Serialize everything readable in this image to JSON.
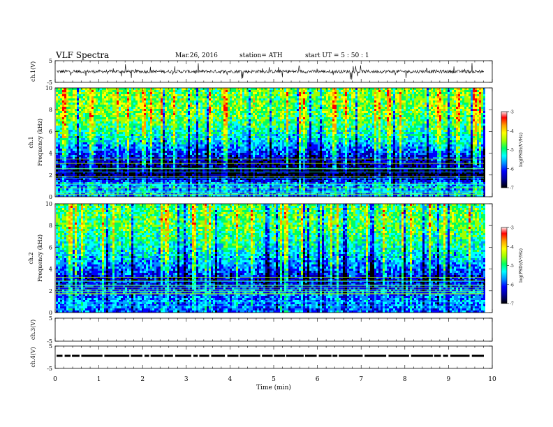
{
  "header": {
    "title": "VLF  Spectra",
    "date": "Mar.26,  2016",
    "station": "station= ATH",
    "start": "start  UT =   5  : 50 : 1"
  },
  "chart_data": [
    {
      "type": "line",
      "panel": "ch1-waveform",
      "ylabel": "ch.1(V)",
      "ylim": [
        -5,
        5
      ],
      "yticks": [
        "5",
        "-5"
      ],
      "xlim": [
        0,
        10
      ],
      "description_values": {
        "baseline_v": 0.0,
        "typical_amplitude_v": 1.5,
        "max_spike_v": 3.5
      }
    },
    {
      "type": "heatmap",
      "panel": "ch1-spectrogram",
      "ylabel": "Frequency  (kHz)",
      "channel_label": "ch.1",
      "ylim": [
        0,
        10
      ],
      "yticks": [
        "0",
        "2",
        "4",
        "6",
        "8",
        "10"
      ],
      "xlim": [
        0,
        9.8
      ],
      "colorbar": {
        "label": "log(PSD)(V²/Hz)",
        "range": [
          -7,
          -3
        ],
        "ticks": [
          "-3",
          "-4",
          "-5",
          "-6",
          "-7"
        ],
        "colors": [
          "#000000",
          "#0000a0",
          "#0000ff",
          "#0090ff",
          "#00ffff",
          "#00ff60",
          "#a0ff00",
          "#ffff00",
          "#ffa000",
          "#ff0000",
          "#ffffff"
        ]
      },
      "rows": [
        {
          "f": 10,
          "level": -4.6
        },
        {
          "f": 9,
          "level": -4.5
        },
        {
          "f": 8,
          "level": -4.5
        },
        {
          "f": 7,
          "level": -4.7
        },
        {
          "f": 6,
          "level": -5.0
        },
        {
          "f": 5,
          "level": -5.3
        },
        {
          "f": 4,
          "level": -5.9
        },
        {
          "f": 3,
          "level": -6.4
        },
        {
          "f": 2,
          "level": -6.7
        },
        {
          "f": 1,
          "level": -5.4
        },
        {
          "f": 0,
          "level": -5.6
        }
      ]
    },
    {
      "type": "heatmap",
      "panel": "ch2-spectrogram",
      "ylabel": "Frequency  (kHz)",
      "channel_label": "ch.2",
      "ylim": [
        0,
        10
      ],
      "yticks": [
        "0",
        "2",
        "4",
        "6",
        "8",
        "10"
      ],
      "xlim": [
        0,
        9.8
      ],
      "colorbar": {
        "label": "log(PSD)(V²/Hz)",
        "range": [
          -7,
          -3
        ],
        "ticks": [
          "-3",
          "-4",
          "-5",
          "-6",
          "-7"
        ],
        "colors": [
          "#000000",
          "#0000a0",
          "#0000ff",
          "#0090ff",
          "#00ffff",
          "#00ff60",
          "#a0ff00",
          "#ffff00",
          "#ffa000",
          "#ff0000",
          "#ffffff"
        ]
      },
      "rows": [
        {
          "f": 10,
          "level": -4.8
        },
        {
          "f": 9,
          "level": -4.7
        },
        {
          "f": 8,
          "level": -4.7
        },
        {
          "f": 7,
          "level": -4.9
        },
        {
          "f": 6,
          "level": -5.1
        },
        {
          "f": 5,
          "level": -5.4
        },
        {
          "f": 4,
          "level": -5.7
        },
        {
          "f": 3,
          "level": -6.3
        },
        {
          "f": 2,
          "level": -5.8
        },
        {
          "f": 1,
          "level": -5.6
        },
        {
          "f": 0,
          "level": -5.8
        }
      ]
    },
    {
      "type": "line",
      "panel": "ch3-waveform",
      "ylabel": "ch.3(V)",
      "ylim": [
        -5,
        5
      ],
      "yticks": [
        "-5",
        "5"
      ],
      "xlim": [
        0,
        10
      ]
    },
    {
      "type": "line",
      "panel": "ch4-waveform",
      "ylabel": "ch.4(V)",
      "ylim": [
        -5,
        5
      ],
      "yticks": [
        "-5",
        "5"
      ],
      "xlim": [
        0,
        10
      ],
      "description_values": {
        "level_v": 0.0
      }
    }
  ],
  "xaxis": {
    "label": "Time  (min)",
    "ticks": [
      "0",
      "1",
      "2",
      "3",
      "4",
      "5",
      "6",
      "7",
      "8",
      "9",
      "10"
    ],
    "range": [
      0,
      10
    ]
  }
}
